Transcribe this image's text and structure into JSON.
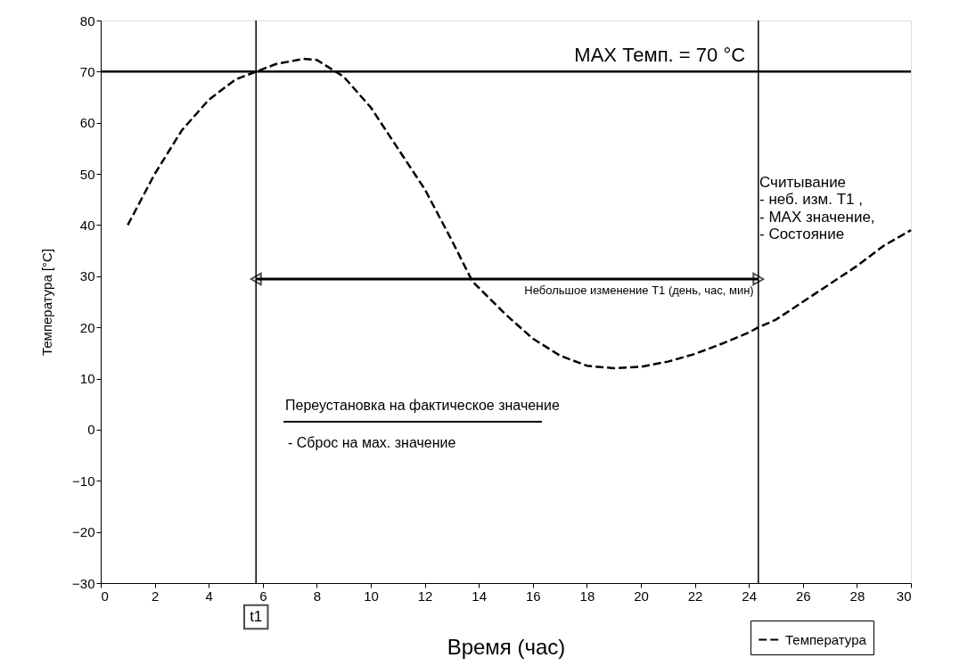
{
  "chart_data": {
    "type": "line",
    "xlabel": "Время (час)",
    "ylabel": "Температура  [°C]",
    "x": [
      1,
      2,
      3,
      4,
      5,
      5.75,
      6.5,
      7.5,
      8,
      9,
      10,
      11,
      12,
      13,
      13.76,
      15,
      16,
      17,
      18,
      19,
      20,
      21,
      22,
      23,
      24,
      24.35,
      25,
      26,
      27,
      28,
      29,
      30
    ],
    "series": [
      {
        "name": "Температура",
        "color": "#000000",
        "values": [
          40,
          50,
          58.5,
          64.5,
          68.5,
          70,
          71.5,
          72.5,
          72.3,
          69,
          63,
          55,
          47,
          37,
          29,
          22.5,
          17.8,
          14.5,
          12.5,
          12,
          12.3,
          13.3,
          14.8,
          16.8,
          19,
          20,
          21.5,
          25,
          28.5,
          32,
          36,
          39
        ]
      }
    ],
    "xlim": [
      0,
      30
    ],
    "ylim": [
      -30,
      80
    ],
    "xticks": [
      0,
      2,
      4,
      6,
      8,
      10,
      12,
      14,
      16,
      18,
      20,
      22,
      24,
      26,
      28,
      30
    ],
    "yticks": [
      -30,
      -20,
      -10,
      0,
      10,
      20,
      30,
      40,
      50,
      60,
      70,
      80
    ],
    "ref_lines": [
      {
        "axis": "y",
        "value": 70,
        "label": "MAX Темп.   = 70 °C",
        "color": "#000000"
      },
      {
        "axis": "x",
        "value": 5.75,
        "label": "t1",
        "color": "#000000"
      },
      {
        "axis": "x",
        "value": 24.35,
        "color": "#000000"
      }
    ],
    "annotations": [
      "Небольшое изменение T1 (день, час, мин)",
      "Считывание",
      "- неб. изм. T1 ,",
      "- MAX  значение,",
      "- Состояние",
      "Переустановка на фактическое значение",
      "-   Сброс на мах. значение"
    ],
    "grid": false,
    "legend": "bottom right",
    "line_style": "dashed",
    "marker": "none"
  }
}
